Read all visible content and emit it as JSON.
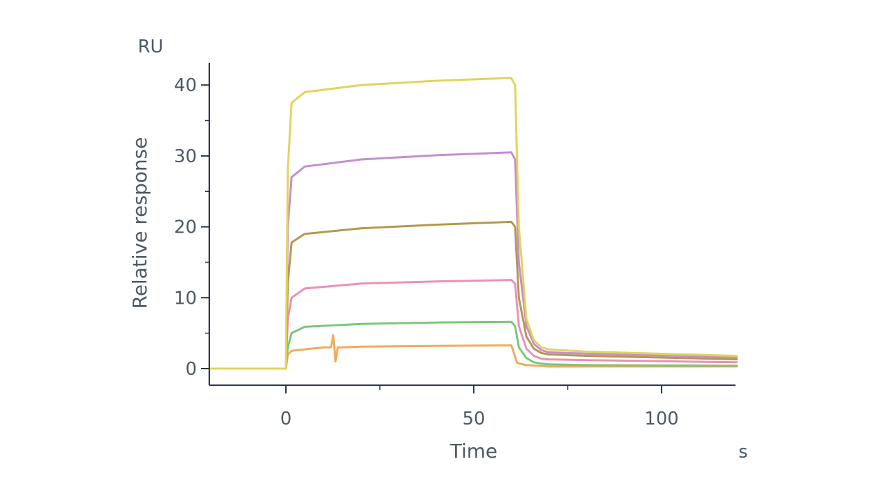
{
  "chart_data": {
    "type": "line",
    "xlabel": "Time",
    "ylabel": "Relative response",
    "x_unit": "s",
    "y_unit": "RU",
    "xlim": [
      -20,
      120
    ],
    "ylim": [
      -2,
      43
    ],
    "x_ticks": [
      0,
      50,
      100
    ],
    "x_minor_ticks": [
      25,
      75
    ],
    "y_ticks": [
      0,
      10,
      20,
      30,
      40
    ],
    "y_minor_ticks": [
      5,
      15,
      25,
      35
    ],
    "grid": false,
    "legend": "none",
    "series": [
      {
        "color": "#e2d45a",
        "x": [
          -20,
          0,
          0.5,
          1.5,
          5,
          20,
          40,
          60,
          61,
          62,
          64,
          66,
          68,
          70,
          80,
          120
        ],
        "y": [
          0,
          0,
          28,
          37.5,
          39,
          40,
          40.6,
          41,
          40,
          20,
          7,
          4,
          3,
          2.7,
          2.4,
          1.8
        ]
      },
      {
        "color": "#c48ed0",
        "x": [
          -20,
          0,
          0.5,
          1.5,
          5,
          20,
          40,
          60,
          61,
          62,
          64,
          66,
          68,
          70,
          80,
          120
        ],
        "y": [
          0,
          0,
          20,
          27,
          28.5,
          29.5,
          30.1,
          30.5,
          29.5,
          15,
          6,
          3.5,
          2.6,
          2.3,
          2.1,
          1.6
        ]
      },
      {
        "color": "#b5974e",
        "x": [
          -20,
          0,
          0.5,
          1.5,
          5,
          20,
          40,
          60,
          61,
          62,
          64,
          66,
          68,
          70,
          80,
          120
        ],
        "y": [
          0,
          0,
          12,
          17.8,
          19,
          19.8,
          20.3,
          20.7,
          20,
          10,
          4.5,
          2.8,
          2.2,
          2,
          1.8,
          1.3
        ]
      },
      {
        "color": "#ec8fb8",
        "x": [
          -20,
          0,
          0.5,
          1.5,
          5,
          20,
          40,
          60,
          61,
          62,
          64,
          66,
          68,
          70,
          80,
          120
        ],
        "y": [
          0,
          0,
          7,
          10,
          11.3,
          12,
          12.3,
          12.5,
          12,
          6,
          2.8,
          1.8,
          1.4,
          1.3,
          1.2,
          0.9
        ]
      },
      {
        "color": "#7cc67a",
        "x": [
          -20,
          0,
          0.5,
          1.5,
          5,
          20,
          40,
          60,
          61,
          62,
          64,
          66,
          68,
          70,
          80,
          120
        ],
        "y": [
          0,
          0,
          3,
          5,
          5.9,
          6.3,
          6.5,
          6.6,
          6,
          3,
          1.5,
          0.9,
          0.7,
          0.6,
          0.5,
          0.4
        ]
      },
      {
        "color": "#f2aa5a",
        "x": [
          -20,
          0,
          0.5,
          1.5,
          3,
          10,
          12,
          12.6,
          13.2,
          13.8,
          15,
          20,
          40,
          60,
          60.8,
          61.5,
          64,
          70,
          120
        ],
        "y": [
          0,
          0,
          2,
          2.5,
          2.6,
          3,
          3,
          4.7,
          1,
          3,
          3,
          3.1,
          3.2,
          3.3,
          2,
          0.8,
          0.5,
          0.3,
          0.3
        ]
      }
    ]
  }
}
